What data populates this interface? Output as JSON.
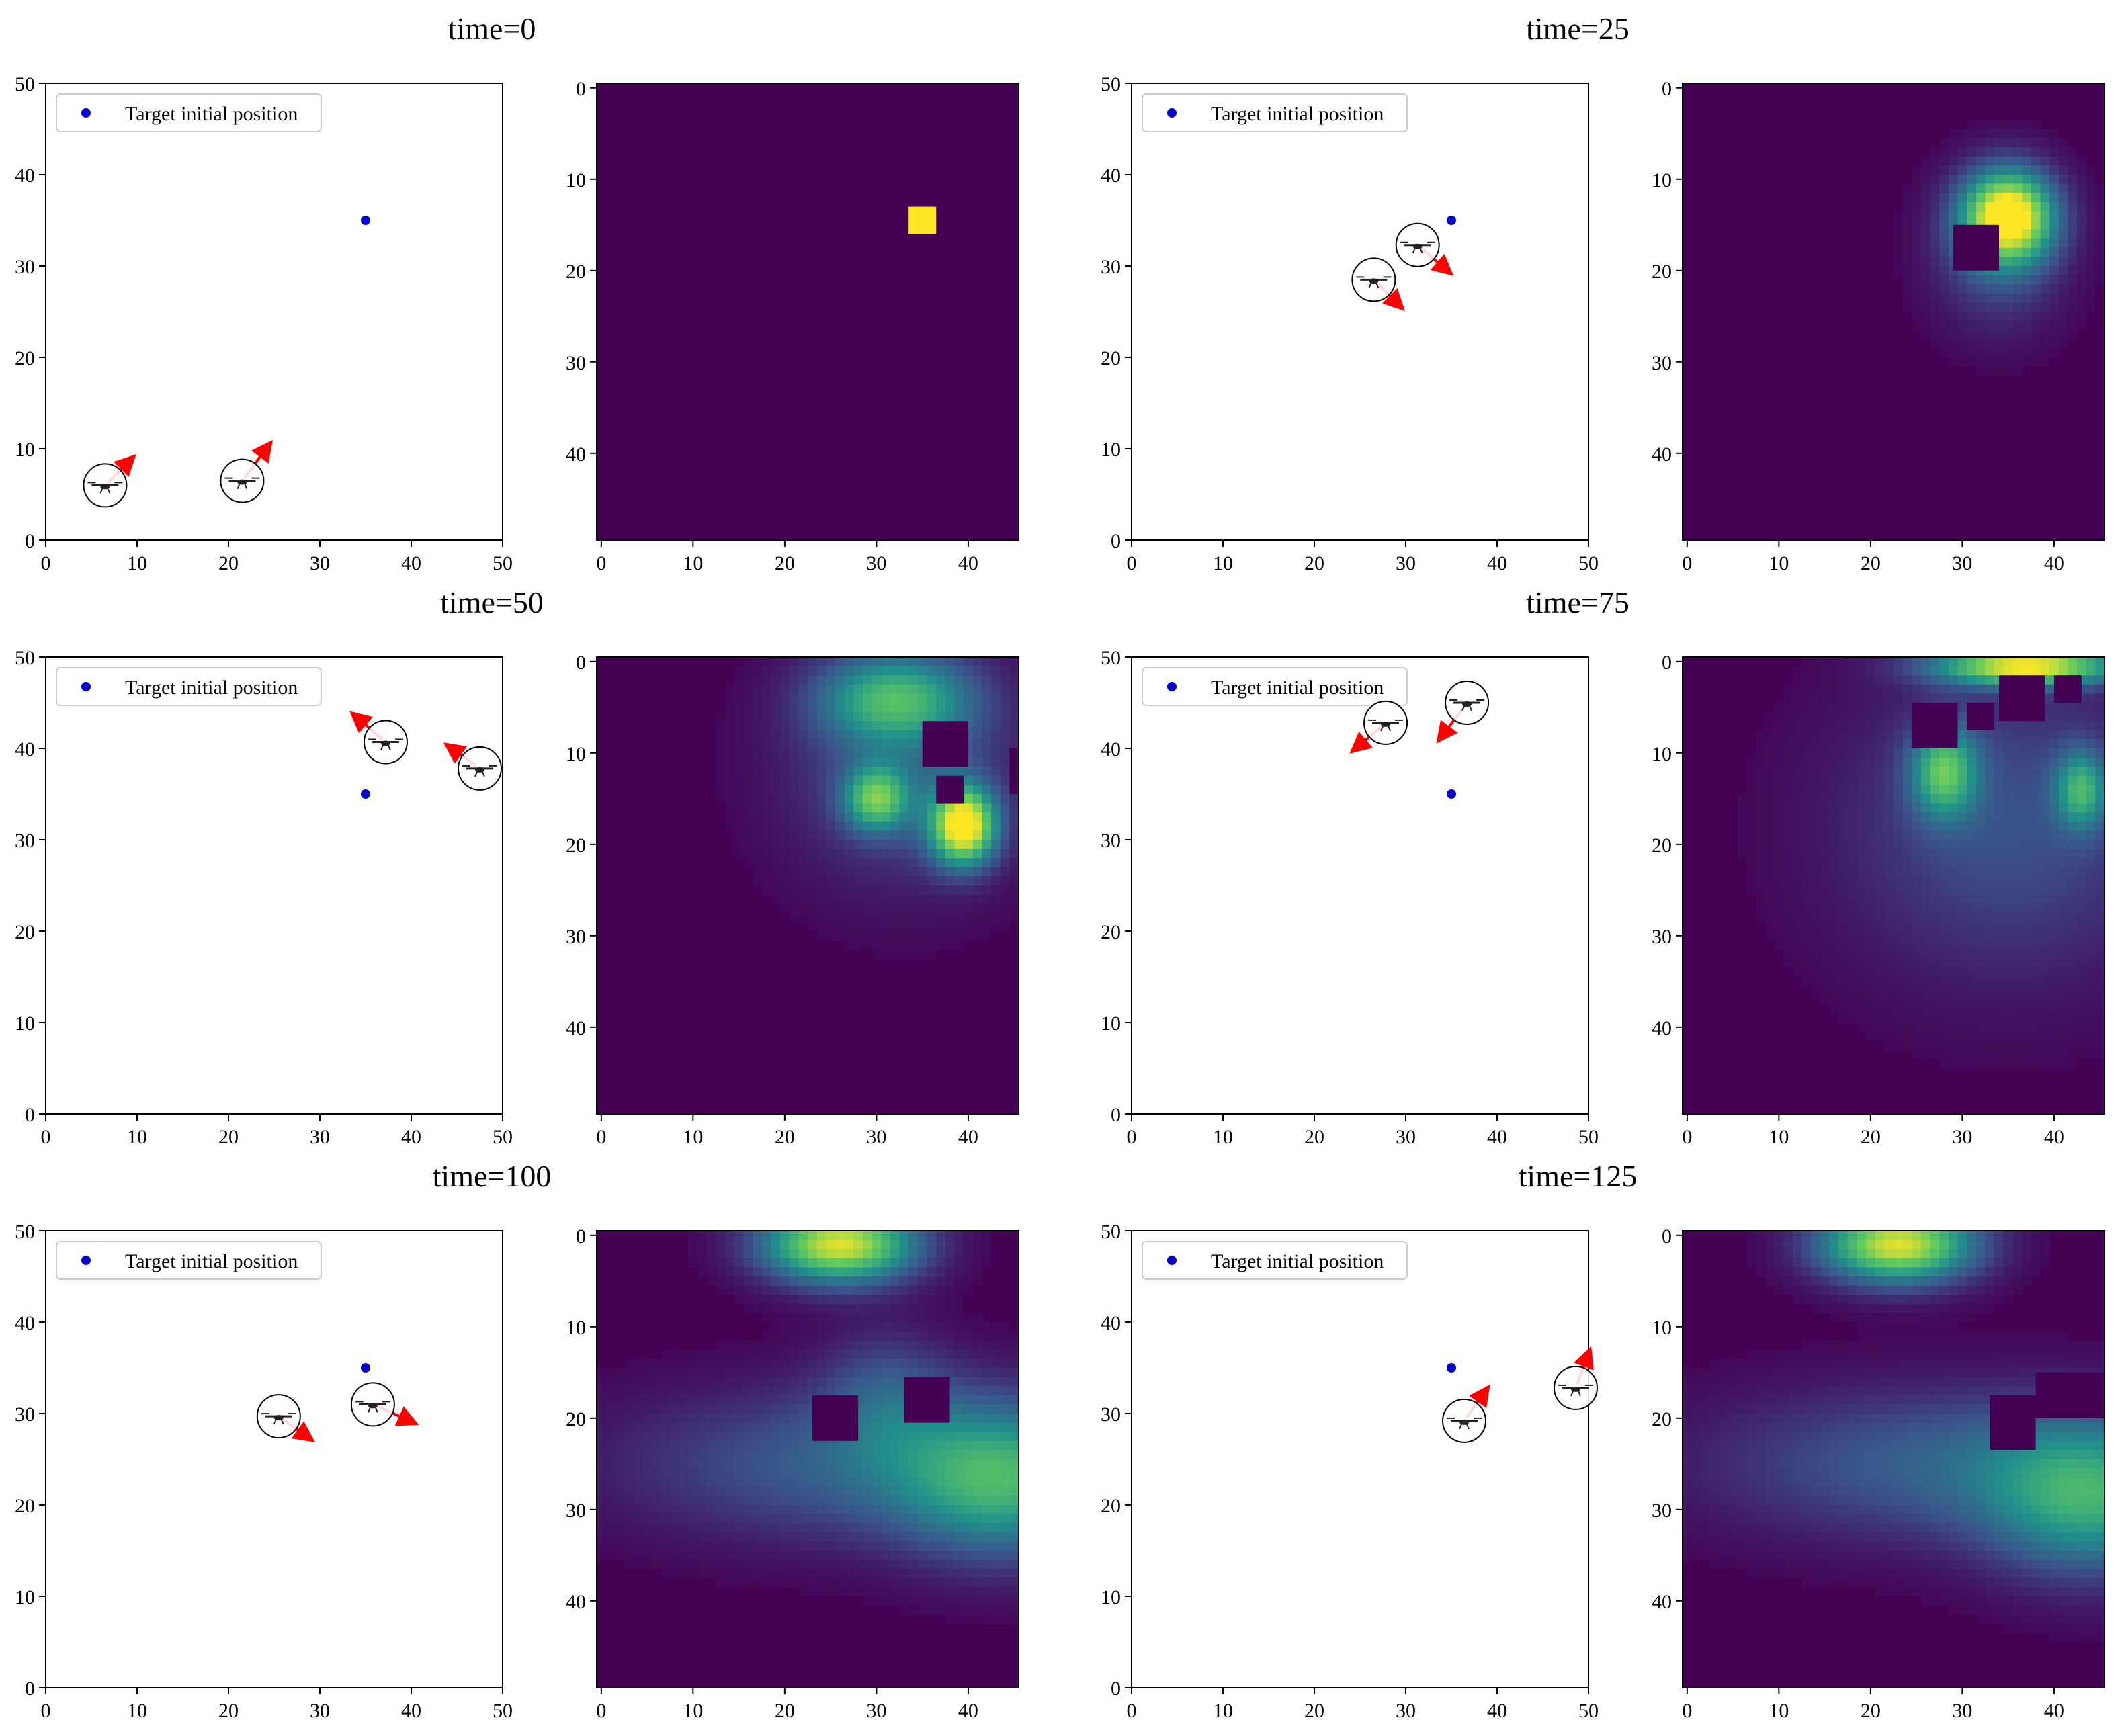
{
  "figure": {
    "layout": "3 rows x 2 snapshot groups (scatter + heatmap)"
  },
  "colors": {
    "target": "#0000cc",
    "arrow": "#ff0000",
    "axis": "#000000",
    "cmap": [
      "#440154",
      "#3b528b",
      "#21918c",
      "#5ec962",
      "#fde725"
    ]
  },
  "legend": {
    "label": "Target initial position"
  },
  "chart_data": [
    {
      "type": "scatter",
      "title": "time=0",
      "xlim": [
        0,
        50
      ],
      "ylim": [
        0,
        50
      ],
      "xticks": [
        "0",
        "10",
        "20",
        "30",
        "40",
        "50"
      ],
      "yticks": [
        "0",
        "10",
        "20",
        "30",
        "40",
        "50"
      ],
      "target": {
        "x": 35,
        "y": 35
      },
      "drones": [
        {
          "x": 6.5,
          "y": 6,
          "dx": 3,
          "dy": 3
        },
        {
          "x": 21.5,
          "y": 6.5,
          "dx": 3,
          "dy": 4
        }
      ],
      "heatmap": {
        "type": "heatmap",
        "xticks": [
          "0",
          "10",
          "20",
          "30",
          "40"
        ],
        "yticks": [
          "0",
          "10",
          "20",
          "30",
          "40"
        ],
        "xrange": [
          0,
          46
        ],
        "yrange": [
          0,
          50
        ],
        "blobs": [],
        "masks": [],
        "hotcells": [
          {
            "x": 35,
            "y": 14.5,
            "w": 3,
            "h": 3
          }
        ]
      }
    },
    {
      "type": "scatter",
      "title": "time=25",
      "xlim": [
        0,
        50
      ],
      "ylim": [
        0,
        50
      ],
      "xticks": [
        "0",
        "10",
        "20",
        "30",
        "40",
        "50"
      ],
      "yticks": [
        "0",
        "10",
        "20",
        "30",
        "40",
        "50"
      ],
      "target": {
        "x": 35,
        "y": 35
      },
      "drones": [
        {
          "x": 26.5,
          "y": 28.5,
          "dx": 3,
          "dy": -3
        },
        {
          "x": 31.3,
          "y": 32.3,
          "dx": 3.5,
          "dy": -3
        }
      ],
      "heatmap": {
        "type": "heatmap",
        "xticks": [
          "0",
          "10",
          "20",
          "30",
          "40"
        ],
        "yticks": [
          "0",
          "10",
          "20",
          "30",
          "40"
        ],
        "xrange": [
          0,
          46
        ],
        "yrange": [
          0,
          50
        ],
        "blobs": [
          {
            "x": 35,
            "y": 14,
            "sx": 3.5,
            "sy": 3.5,
            "a": 1.0
          },
          {
            "x": 34,
            "y": 18,
            "sx": 5,
            "sy": 6,
            "a": 0.25
          }
        ],
        "masks": [
          {
            "x": 29,
            "y": 15,
            "w": 5,
            "h": 5
          }
        ],
        "hotcells": []
      }
    },
    {
      "type": "scatter",
      "title": "time=50",
      "xlim": [
        0,
        50
      ],
      "ylim": [
        0,
        50
      ],
      "xticks": [
        "0",
        "10",
        "20",
        "30",
        "40",
        "50"
      ],
      "yticks": [
        "0",
        "10",
        "20",
        "30",
        "40",
        "50"
      ],
      "target": {
        "x": 35,
        "y": 35
      },
      "drones": [
        {
          "x": 37.2,
          "y": 40.7,
          "dx": -3.5,
          "dy": 3
        },
        {
          "x": 47.5,
          "y": 37.8,
          "dx": -3.5,
          "dy": 2.5
        }
      ],
      "heatmap": {
        "type": "heatmap",
        "xticks": [
          "0",
          "10",
          "20",
          "30",
          "40"
        ],
        "yticks": [
          "0",
          "10",
          "20",
          "30",
          "40"
        ],
        "xrange": [
          0,
          46
        ],
        "yrange": [
          0,
          50
        ],
        "blobs": [
          {
            "x": 39.5,
            "y": 18,
            "sx": 2.5,
            "sy": 3,
            "a": 1.0
          },
          {
            "x": 30,
            "y": 15,
            "sx": 2.5,
            "sy": 2.5,
            "a": 0.6
          },
          {
            "x": 32,
            "y": 4,
            "sx": 6,
            "sy": 3.5,
            "a": 0.55
          },
          {
            "x": 33,
            "y": 12,
            "sx": 9,
            "sy": 9,
            "a": 0.25
          }
        ],
        "masks": [
          {
            "x": 35,
            "y": 6.5,
            "w": 5,
            "h": 5
          },
          {
            "x": 44.5,
            "y": 9.5,
            "w": 2,
            "h": 5
          },
          {
            "x": 36.5,
            "y": 12.5,
            "w": 3,
            "h": 3
          }
        ],
        "hotcells": []
      }
    },
    {
      "type": "scatter",
      "title": "time=75",
      "xlim": [
        0,
        50
      ],
      "ylim": [
        0,
        50
      ],
      "xticks": [
        "0",
        "10",
        "20",
        "30",
        "40",
        "50"
      ],
      "yticks": [
        "0",
        "10",
        "20",
        "30",
        "40",
        "50"
      ],
      "target": {
        "x": 35,
        "y": 35
      },
      "drones": [
        {
          "x": 27.8,
          "y": 42.8,
          "dx": -3.5,
          "dy": -3
        },
        {
          "x": 36.7,
          "y": 45,
          "dx": -3,
          "dy": -4
        }
      ],
      "heatmap": {
        "type": "heatmap",
        "xticks": [
          "0",
          "10",
          "20",
          "30",
          "40"
        ],
        "yticks": [
          "0",
          "10",
          "20",
          "30",
          "40"
        ],
        "xrange": [
          0,
          46
        ],
        "yrange": [
          0,
          50
        ],
        "blobs": [
          {
            "x": 37,
            "y": 0.5,
            "sx": 7,
            "sy": 1.5,
            "a": 0.95
          },
          {
            "x": 28,
            "y": 12,
            "sx": 2.5,
            "sy": 3.5,
            "a": 0.6
          },
          {
            "x": 43,
            "y": 14,
            "sx": 2,
            "sy": 3,
            "a": 0.5
          },
          {
            "x": 35,
            "y": 18,
            "sx": 13,
            "sy": 12,
            "a": 0.25
          }
        ],
        "masks": [
          {
            "x": 24.5,
            "y": 4.5,
            "w": 5,
            "h": 5
          },
          {
            "x": 34,
            "y": 1.5,
            "w": 5,
            "h": 5
          },
          {
            "x": 30.5,
            "y": 4.5,
            "w": 3,
            "h": 3
          },
          {
            "x": 40,
            "y": 1.5,
            "w": 3,
            "h": 3
          }
        ],
        "hotcells": []
      }
    },
    {
      "type": "scatter",
      "title": "time=100",
      "xlim": [
        0,
        50
      ],
      "ylim": [
        0,
        50
      ],
      "xticks": [
        "0",
        "10",
        "20",
        "30",
        "40",
        "50"
      ],
      "yticks": [
        "0",
        "10",
        "20",
        "30",
        "40",
        "50"
      ],
      "target": {
        "x": 35,
        "y": 35
      },
      "drones": [
        {
          "x": 25.5,
          "y": 29.7,
          "dx": 3.5,
          "dy": -2.5
        },
        {
          "x": 35.8,
          "y": 31,
          "dx": 4.5,
          "dy": -2
        }
      ],
      "heatmap": {
        "type": "heatmap",
        "xticks": [
          "0",
          "10",
          "20",
          "30",
          "40"
        ],
        "yticks": [
          "0",
          "10",
          "20",
          "30",
          "40"
        ],
        "xrange": [
          0,
          46
        ],
        "yrange": [
          0,
          50
        ],
        "blobs": [
          {
            "x": 26,
            "y": 1,
            "sx": 6,
            "sy": 3,
            "a": 0.95
          },
          {
            "x": 44,
            "y": 27,
            "sx": 8,
            "sy": 6,
            "a": 0.5
          },
          {
            "x": 28,
            "y": 25,
            "sx": 18,
            "sy": 6,
            "a": 0.3
          },
          {
            "x": 31,
            "y": 17,
            "sx": 5,
            "sy": 5,
            "a": 0.2
          }
        ],
        "masks": [
          {
            "x": 23,
            "y": 17.5,
            "w": 5,
            "h": 5
          },
          {
            "x": 33,
            "y": 15.5,
            "w": 5,
            "h": 5
          }
        ],
        "hotcells": []
      }
    },
    {
      "type": "scatter",
      "title": "time=125",
      "xlim": [
        0,
        50
      ],
      "ylim": [
        0,
        50
      ],
      "xticks": [
        "0",
        "10",
        "20",
        "30",
        "40",
        "50"
      ],
      "yticks": [
        "0",
        "10",
        "20",
        "30",
        "40",
        "50"
      ],
      "target": {
        "x": 35,
        "y": 35
      },
      "drones": [
        {
          "x": 36.4,
          "y": 29.2,
          "dx": 2.5,
          "dy": 3.5
        },
        {
          "x": 48.6,
          "y": 32.8,
          "dx": 1.5,
          "dy": 4
        }
      ],
      "heatmap": {
        "type": "heatmap",
        "xticks": [
          "0",
          "10",
          "20",
          "30",
          "40"
        ],
        "yticks": [
          "0",
          "10",
          "20",
          "30",
          "40"
        ],
        "xrange": [
          0,
          46
        ],
        "yrange": [
          0,
          50
        ],
        "blobs": [
          {
            "x": 23,
            "y": 1,
            "sx": 6,
            "sy": 3,
            "a": 0.95
          },
          {
            "x": 44,
            "y": 29,
            "sx": 8,
            "sy": 6,
            "a": 0.5
          },
          {
            "x": 28,
            "y": 25,
            "sx": 18,
            "sy": 6,
            "a": 0.3
          }
        ],
        "masks": [
          {
            "x": 33,
            "y": 17.5,
            "w": 5,
            "h": 6
          },
          {
            "x": 38,
            "y": 15,
            "w": 8,
            "h": 5
          }
        ],
        "hotcells": []
      }
    }
  ]
}
